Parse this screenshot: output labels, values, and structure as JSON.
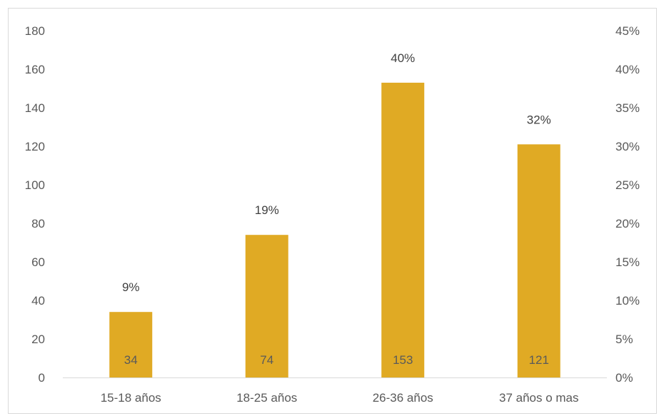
{
  "chart_data": {
    "type": "bar",
    "categories": [
      "15-18 años",
      "18-25 años",
      "26-36 años",
      "37 años o mas"
    ],
    "series": [
      {
        "values": [
          34,
          74,
          153,
          121
        ],
        "value_labels": [
          "34",
          "74",
          "153",
          "121"
        ],
        "percent_labels": [
          "9%",
          "19%",
          "40%",
          "32%"
        ],
        "color": "#E0AA24"
      }
    ],
    "title": "",
    "xlabel": "",
    "ylabel": "",
    "ylim": [
      0,
      180
    ],
    "y_ticks": [
      "0",
      "20",
      "40",
      "60",
      "80",
      "100",
      "120",
      "140",
      "160",
      "180"
    ],
    "y2lim": [
      0,
      0.45
    ],
    "y2_ticks": [
      "0%",
      "5%",
      "10%",
      "15%",
      "20%",
      "25%",
      "30%",
      "35%",
      "40%",
      "45%"
    ],
    "grid": false,
    "legend": "none"
  },
  "colors": {
    "bar": "#E0AA24",
    "axis_line": "#D9D9D9",
    "frame": "#D9D9D9"
  }
}
